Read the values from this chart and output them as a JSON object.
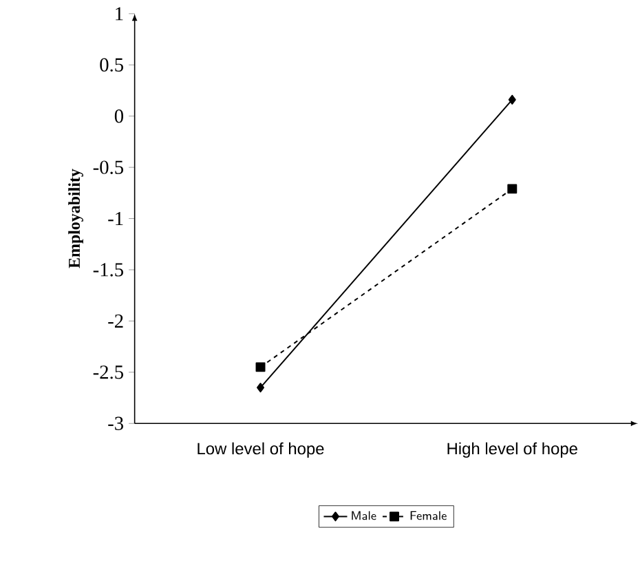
{
  "chart_data": {
    "type": "line",
    "ylabel": "Employability",
    "categories": [
      "Low level of hope",
      "High level of hope"
    ],
    "series": [
      {
        "name": "Male",
        "color": "#000000",
        "values": [
          -2.65,
          0.16
        ],
        "marker": "diamond",
        "line_style": "solid"
      },
      {
        "name": "Female",
        "color": "#000000",
        "values": [
          -2.45,
          -0.71
        ],
        "marker": "square",
        "line_style": "dashed"
      }
    ],
    "ylim": [
      -3,
      1
    ],
    "yticks": [
      -3,
      -2.5,
      -2,
      -1.5,
      -1,
      -0.5,
      0,
      0.5,
      1
    ],
    "grid": false,
    "legend": "bottom"
  }
}
